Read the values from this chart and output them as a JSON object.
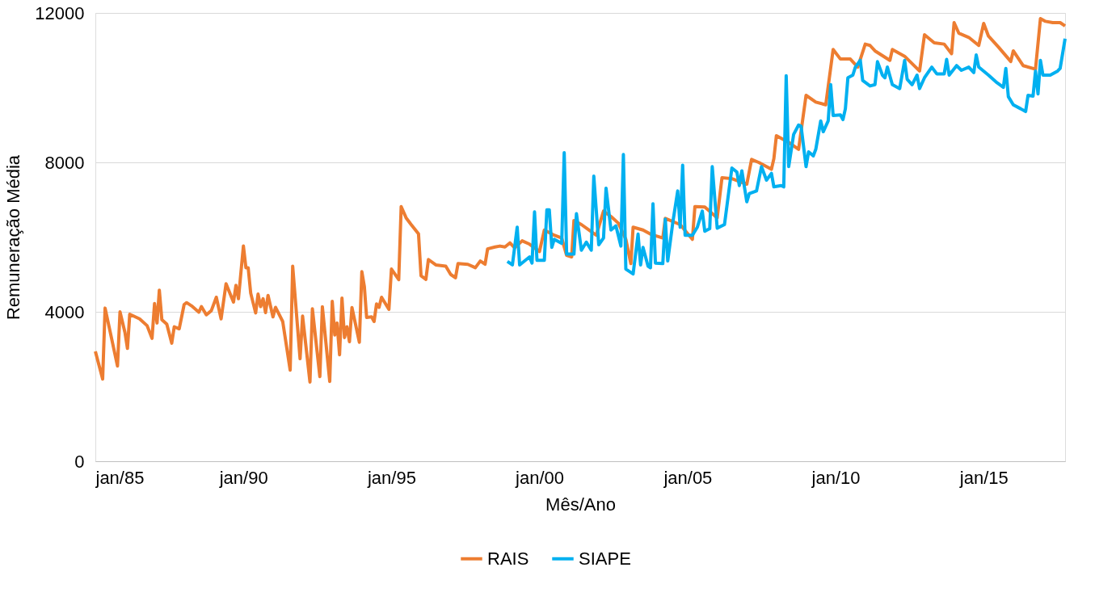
{
  "chart_data": {
    "type": "line",
    "xlabel": "Mês/Ano",
    "ylabel": "Remuneração Média",
    "xlim": [
      "1985-01",
      "2017-10"
    ],
    "ylim": [
      0,
      12000
    ],
    "yticks": [
      0,
      4000,
      8000,
      12000
    ],
    "xticks": [
      {
        "value": "1985-01",
        "label": "jan/85"
      },
      {
        "value": "1990-01",
        "label": "jan/90"
      },
      {
        "value": "1995-01",
        "label": "jan/95"
      },
      {
        "value": "2000-01",
        "label": "jan/00"
      },
      {
        "value": "2005-01",
        "label": "jan/05"
      },
      {
        "value": "2010-01",
        "label": "jan/10"
      },
      {
        "value": "2015-01",
        "label": "jan/15"
      }
    ],
    "grid": "y",
    "legend": "bottom",
    "line_style": "solid",
    "marker": "none",
    "series": [
      {
        "name": "RAIS",
        "color": "#ed7d31",
        "x": [
          "1985-01",
          "1985-04",
          "1985-05",
          "1985-10",
          "1985-11",
          "1986-01",
          "1986-02",
          "1986-03",
          "1986-07",
          "1986-10",
          "1986-12",
          "1987-01",
          "1987-02",
          "1987-03",
          "1987-04",
          "1987-06",
          "1987-08",
          "1987-09",
          "1987-11",
          "1988-01",
          "1988-02",
          "1988-04",
          "1988-07",
          "1988-08",
          "1988-10",
          "1988-12",
          "1989-02",
          "1989-04",
          "1989-06",
          "1989-09",
          "1989-10",
          "1989-11",
          "1990-01",
          "1990-02",
          "1990-03",
          "1990-04",
          "1990-06",
          "1990-07",
          "1990-08",
          "1990-09",
          "1990-10",
          "1990-11",
          "1991-01",
          "1991-02",
          "1991-05",
          "1991-08",
          "1991-09",
          "1991-12",
          "1992-01",
          "1992-04",
          "1992-05",
          "1992-08",
          "1992-09",
          "1992-12",
          "1993-01",
          "1993-02",
          "1993-03",
          "1993-04",
          "1993-05",
          "1993-06",
          "1993-07",
          "1993-08",
          "1993-09",
          "1993-12",
          "1994-01",
          "1994-02",
          "1994-03",
          "1994-05",
          "1994-06",
          "1994-07",
          "1994-08",
          "1994-09",
          "1994-12",
          "1995-01",
          "1995-04",
          "1995-05",
          "1995-07",
          "1995-09",
          "1995-12",
          "1996-01",
          "1996-03",
          "1996-04",
          "1996-07",
          "1996-11",
          "1997-01",
          "1997-03",
          "1997-04",
          "1997-08",
          "1997-11",
          "1998-01",
          "1998-03",
          "1998-04",
          "1998-07",
          "1998-09",
          "1998-11",
          "1999-01",
          "1999-03",
          "1999-06",
          "1999-09",
          "2000-01",
          "2000-03",
          "2000-07",
          "2000-10",
          "2000-12",
          "2001-02",
          "2001-03",
          "2001-06",
          "2001-09",
          "2001-12",
          "2002-03",
          "2002-06",
          "2002-09",
          "2002-12",
          "2003-02",
          "2003-03",
          "2003-07",
          "2003-10",
          "2004-03",
          "2004-04",
          "2004-10",
          "2005-03",
          "2005-04",
          "2005-08",
          "2006-01",
          "2006-03",
          "2006-07",
          "2007-01",
          "2007-03",
          "2007-06",
          "2007-11",
          "2007-12",
          "2008-01",
          "2008-06",
          "2008-10",
          "2009-01",
          "2009-05",
          "2009-09",
          "2009-12",
          "2010-03",
          "2010-07",
          "2010-10",
          "2011-01",
          "2011-03",
          "2011-05",
          "2011-11",
          "2011-12",
          "2012-05",
          "2012-11",
          "2013-01",
          "2013-05",
          "2013-09",
          "2013-12",
          "2014-01",
          "2014-03",
          "2014-07",
          "2014-11",
          "2015-01",
          "2015-03",
          "2015-07",
          "2015-12",
          "2016-01",
          "2016-05",
          "2016-10",
          "2016-12",
          "2017-02",
          "2017-05",
          "2017-08",
          "2017-10"
        ],
        "values": [
          2940,
          2200,
          4100,
          2550,
          4000,
          3450,
          3020,
          3935,
          3810,
          3630,
          3290,
          4220,
          3700,
          4580,
          3790,
          3670,
          3160,
          3600,
          3545,
          4195,
          4245,
          4160,
          3990,
          4140,
          3920,
          4030,
          4390,
          3810,
          4750,
          4260,
          4710,
          4350,
          5760,
          5180,
          5180,
          4500,
          3970,
          4475,
          4140,
          4350,
          3980,
          4440,
          3865,
          4120,
          3740,
          2440,
          5220,
          2745,
          3885,
          2120,
          4080,
          2265,
          4135,
          2135,
          4280,
          3380,
          3700,
          2850,
          4365,
          3310,
          3600,
          3200,
          4115,
          3185,
          5075,
          4675,
          3850,
          3865,
          3740,
          4210,
          4120,
          4390,
          4065,
          5145,
          4860,
          6815,
          6515,
          6335,
          6085,
          4965,
          4870,
          5400,
          5255,
          5220,
          5000,
          4910,
          5290,
          5270,
          5180,
          5360,
          5275,
          5685,
          5735,
          5760,
          5735,
          5845,
          5710,
          5900,
          5810,
          5615,
          6190,
          6050,
          5975,
          5510,
          5470,
          6445,
          6335,
          6190,
          6050,
          6695,
          6550,
          6370,
          5940,
          5290,
          6265,
          6190,
          6080,
          5975,
          6500,
          6335,
          5940,
          6815,
          6805,
          6515,
          7590,
          7565,
          7415,
          8080,
          7995,
          7815,
          8100,
          8715,
          8535,
          8350,
          9795,
          9615,
          9540,
          11020,
          10765,
          10765,
          10550,
          11165,
          11130,
          10985,
          10730,
          11020,
          10840,
          10445,
          11415,
          11200,
          11165,
          10910,
          11740,
          11455,
          11345,
          11130,
          11720,
          11380,
          11090,
          10700,
          10985,
          10590,
          10495,
          11850,
          11775,
          11740,
          11740,
          11650
        ]
      },
      {
        "name": "SIAPE",
        "color": "#00b0f0",
        "x": [
          "1998-12",
          "1999-02",
          "1999-04",
          "1999-05",
          "1999-09",
          "1999-10",
          "1999-11",
          "1999-12",
          "2000-03",
          "2000-04",
          "2000-05",
          "2000-06",
          "2000-07",
          "2000-10",
          "2000-11",
          "2000-12",
          "2001-03",
          "2001-04",
          "2001-06",
          "2001-08",
          "2001-10",
          "2001-11",
          "2002-01",
          "2002-03",
          "2002-04",
          "2002-06",
          "2002-08",
          "2002-10",
          "2002-11",
          "2002-12",
          "2003-03",
          "2003-05",
          "2003-06",
          "2003-07",
          "2003-09",
          "2003-10",
          "2003-11",
          "2003-12",
          "2004-03",
          "2004-04",
          "2004-05",
          "2004-07",
          "2004-09",
          "2004-10",
          "2004-11",
          "2004-12",
          "2005-03",
          "2005-05",
          "2005-07",
          "2005-08",
          "2005-10",
          "2005-11",
          "2006-01",
          "2006-04",
          "2006-07",
          "2006-09",
          "2006-10",
          "2006-11",
          "2007-01",
          "2007-02",
          "2007-05",
          "2007-07",
          "2007-09",
          "2007-11",
          "2007-12",
          "2008-03",
          "2008-04",
          "2008-05",
          "2008-06",
          "2008-08",
          "2008-10",
          "2008-11",
          "2009-01",
          "2009-02",
          "2009-04",
          "2009-05",
          "2009-07",
          "2009-08",
          "2009-10",
          "2009-11",
          "2009-12",
          "2010-03",
          "2010-04",
          "2010-05",
          "2010-06",
          "2010-08",
          "2010-09",
          "2010-11",
          "2010-12",
          "2011-03",
          "2011-05",
          "2011-06",
          "2011-08",
          "2011-09",
          "2011-10",
          "2011-12",
          "2012-03",
          "2012-05",
          "2012-06",
          "2012-08",
          "2012-10",
          "2012-11",
          "2013-01",
          "2013-04",
          "2013-06",
          "2013-09",
          "2013-10",
          "2013-11",
          "2014-02",
          "2014-04",
          "2014-07",
          "2014-09",
          "2014-10",
          "2014-11",
          "2015-03",
          "2015-06",
          "2015-09",
          "2015-10",
          "2015-11",
          "2016-01",
          "2016-04",
          "2016-06",
          "2016-07",
          "2016-09",
          "2016-10",
          "2016-11",
          "2016-12",
          "2017-01",
          "2017-04",
          "2017-07",
          "2017-08",
          "2017-10"
        ],
        "values": [
          5350,
          5255,
          6265,
          5255,
          5470,
          5305,
          6675,
          5380,
          5380,
          6730,
          6730,
          5725,
          5940,
          5830,
          8260,
          5545,
          5545,
          6625,
          5650,
          5865,
          5650,
          7630,
          5795,
          5975,
          7310,
          6190,
          6300,
          5760,
          8210,
          5145,
          5015,
          6080,
          5255,
          5725,
          5220,
          5180,
          6890,
          5305,
          5290,
          6480,
          5360,
          6370,
          7235,
          6265,
          7925,
          6050,
          6050,
          6265,
          6695,
          6155,
          6225,
          7885,
          6240,
          6335,
          7850,
          7740,
          7380,
          7775,
          6945,
          7165,
          7235,
          7885,
          7525,
          7705,
          7345,
          7380,
          7345,
          10320,
          7885,
          8750,
          9000,
          8965,
          7885,
          8280,
          8175,
          8350,
          9110,
          8820,
          9110,
          10080,
          9255,
          9270,
          9145,
          9435,
          10265,
          10335,
          10550,
          10730,
          10190,
          10045,
          10080,
          10695,
          10335,
          10265,
          10550,
          10080,
          9975,
          10730,
          10225,
          10080,
          10335,
          9975,
          10265,
          10550,
          10370,
          10370,
          10755,
          10335,
          10590,
          10465,
          10550,
          10405,
          10875,
          10550,
          10335,
          10155,
          10010,
          10515,
          9760,
          9540,
          9435,
          9360,
          9795,
          9775,
          10445,
          9830,
          10730,
          10335,
          10335,
          10445,
          10515,
          11310
        ]
      }
    ]
  }
}
